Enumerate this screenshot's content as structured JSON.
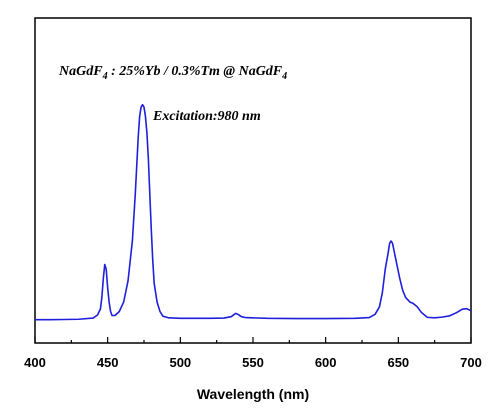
{
  "chart_data": {
    "type": "line",
    "title": "",
    "xlabel": "Wavelength (nm)",
    "ylabel": "",
    "xlim": [
      400,
      700
    ],
    "ylim": [
      0,
      100
    ],
    "xticks": [
      400,
      450,
      500,
      550,
      600,
      650,
      700
    ],
    "xtick_labels": [
      "400",
      "450",
      "500",
      "550",
      "600",
      "650",
      "700"
    ],
    "yticks_labeled": false,
    "grid": false,
    "line_color": "#1f1fdc",
    "annotations": {
      "composition_parts": [
        "NaGdF",
        "4",
        " : 25%Yb / 0.3%Tm @ NaGdF",
        "4"
      ],
      "excitation": "Excitation:980 nm"
    },
    "series": [
      {
        "name": "",
        "points": [
          [
            400,
            6.5
          ],
          [
            410,
            6.5
          ],
          [
            420,
            6.6
          ],
          [
            430,
            6.7
          ],
          [
            440,
            7.2
          ],
          [
            443,
            8.5
          ],
          [
            445,
            11
          ],
          [
            446,
            16
          ],
          [
            447,
            24
          ],
          [
            448,
            30
          ],
          [
            449,
            28
          ],
          [
            450,
            20
          ],
          [
            451,
            14
          ],
          [
            452,
            10
          ],
          [
            453,
            8.3
          ],
          [
            455,
            8.3
          ],
          [
            458,
            10
          ],
          [
            461,
            14
          ],
          [
            464,
            23
          ],
          [
            467,
            40
          ],
          [
            469,
            60
          ],
          [
            470,
            72
          ],
          [
            471,
            84
          ],
          [
            472,
            93
          ],
          [
            473,
            97
          ],
          [
            474,
            98
          ],
          [
            475,
            97
          ],
          [
            476,
            93
          ],
          [
            477,
            86
          ],
          [
            478,
            75
          ],
          [
            479,
            60
          ],
          [
            480,
            45
          ],
          [
            481,
            32
          ],
          [
            482,
            22
          ],
          [
            484,
            14
          ],
          [
            486,
            10
          ],
          [
            488,
            8
          ],
          [
            492,
            7.3
          ],
          [
            500,
            7.1
          ],
          [
            520,
            7.1
          ],
          [
            530,
            7.2
          ],
          [
            535,
            7.8
          ],
          [
            537,
            8.7
          ],
          [
            538,
            9.2
          ],
          [
            540,
            8.7
          ],
          [
            542,
            7.8
          ],
          [
            545,
            7.4
          ],
          [
            560,
            7.1
          ],
          [
            580,
            7.0
          ],
          [
            600,
            7.0
          ],
          [
            620,
            7.1
          ],
          [
            630,
            7.4
          ],
          [
            634,
            8.8
          ],
          [
            637,
            12
          ],
          [
            639,
            18
          ],
          [
            641,
            28
          ],
          [
            643,
            35
          ],
          [
            644,
            39
          ],
          [
            645,
            40
          ],
          [
            646,
            39
          ],
          [
            647,
            36
          ],
          [
            649,
            30
          ],
          [
            651,
            24
          ],
          [
            653,
            19
          ],
          [
            655,
            16
          ],
          [
            658,
            14
          ],
          [
            660,
            13.5
          ],
          [
            663,
            12
          ],
          [
            666,
            9.5
          ],
          [
            670,
            7.5
          ],
          [
            675,
            7.3
          ],
          [
            680,
            7.6
          ],
          [
            685,
            8.1
          ],
          [
            690,
            9.5
          ],
          [
            694,
            11
          ],
          [
            697,
            11.2
          ],
          [
            700,
            10.3
          ]
        ]
      }
    ]
  }
}
